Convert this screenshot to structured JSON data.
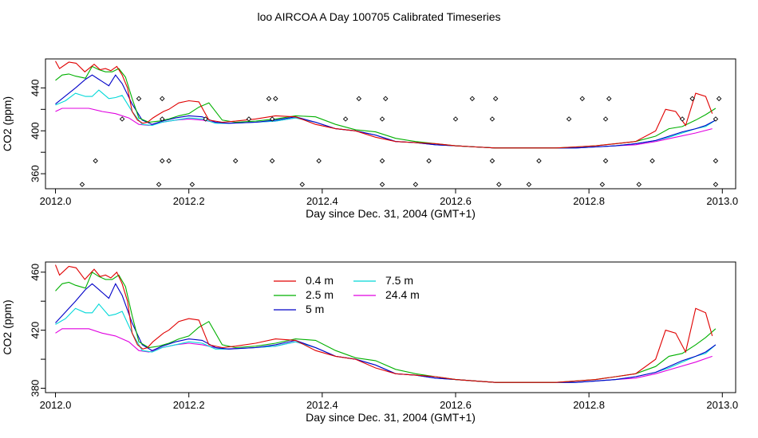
{
  "title": "loo AIRCOA A  Day 100705  Calibrated Timeseries",
  "colors": {
    "0.4 m": "#e00000",
    "2.5 m": "#00b000",
    "5 m": "#0000c8",
    "7.5 m": "#00d8d8",
    "24.4 m": "#e000e0",
    "markers": "#000000"
  },
  "chart_data": [
    {
      "type": "line",
      "xlabel": "Day since Dec. 31, 2004 (GMT+1)",
      "ylabel": "CO2 (ppm)",
      "xlim": [
        2011.985,
        2013.02
      ],
      "ylim": [
        346,
        467
      ],
      "xticks": [
        2012.0,
        2012.2,
        2012.4,
        2012.6,
        2012.8,
        2013.0
      ],
      "xtick_labels": [
        "2012.0",
        "2012.2",
        "2012.4",
        "2012.6",
        "2012.8",
        "2013.0"
      ],
      "yticks": [
        360,
        380,
        400,
        420,
        440
      ],
      "ytick_labels": [
        "360",
        "",
        "400",
        "",
        "440"
      ],
      "grid": false,
      "series": [
        {
          "name": "0.4 m",
          "x": [
            2012.0,
            2012.006,
            2012.02,
            2012.031,
            2012.044,
            2012.058,
            2012.067,
            2012.075,
            2012.083,
            2012.092,
            2012.1,
            2012.108,
            2012.115,
            2012.123,
            2012.131,
            2012.138,
            2012.146,
            2012.154,
            2012.162,
            2012.17,
            2012.185,
            2012.2,
            2012.215,
            2012.23,
            2012.25,
            2012.27,
            2012.3,
            2012.33,
            2012.36,
            2012.39,
            2012.42,
            2012.45,
            2012.48,
            2012.51,
            2012.54,
            2012.57,
            2012.6,
            2012.63,
            2012.66,
            2012.69,
            2012.72,
            2012.75,
            2012.78,
            2012.81,
            2012.84,
            2012.87,
            2012.9,
            2012.915,
            2012.93,
            2012.945,
            2012.96,
            2012.975,
            2012.985
          ],
          "y": [
            465,
            458,
            464,
            463,
            455,
            462,
            457,
            458,
            456,
            460,
            452,
            440,
            418,
            410,
            407,
            408,
            412,
            415,
            418,
            420,
            426,
            428,
            427,
            410,
            408,
            409,
            411,
            414,
            413,
            406,
            402,
            400,
            394,
            390,
            389,
            388,
            386,
            385,
            384,
            384,
            384,
            384,
            385,
            386,
            388,
            390,
            400,
            420,
            418,
            405,
            435,
            432,
            416
          ]
        },
        {
          "name": "2.5 m",
          "x": [
            2012.0,
            2012.01,
            2012.02,
            2012.03,
            2012.045,
            2012.055,
            2012.065,
            2012.075,
            2012.085,
            2012.095,
            2012.105,
            2012.115,
            2012.125,
            2012.14,
            2012.155,
            2012.17,
            2012.185,
            2012.2,
            2012.215,
            2012.23,
            2012.25,
            2012.27,
            2012.3,
            2012.33,
            2012.36,
            2012.39,
            2012.42,
            2012.45,
            2012.48,
            2012.51,
            2012.54,
            2012.57,
            2012.6,
            2012.63,
            2012.66,
            2012.69,
            2012.72,
            2012.75,
            2012.78,
            2012.81,
            2012.84,
            2012.87,
            2012.9,
            2012.92,
            2012.94,
            2012.96,
            2012.975,
            2012.99
          ],
          "y": [
            447,
            452,
            453,
            451,
            449,
            460,
            457,
            455,
            455,
            458,
            450,
            430,
            412,
            408,
            409,
            411,
            414,
            416,
            422,
            426,
            410,
            408,
            409,
            411,
            414,
            413,
            406,
            401,
            399,
            393,
            390,
            388,
            386,
            385,
            384,
            384,
            384,
            384,
            385,
            386,
            388,
            390,
            395,
            402,
            404,
            410,
            415,
            421
          ]
        },
        {
          "name": "5 m",
          "x": [
            2012.0,
            2012.01,
            2012.02,
            2012.03,
            2012.045,
            2012.055,
            2012.065,
            2012.08,
            2012.09,
            2012.1,
            2012.115,
            2012.13,
            2012.145,
            2012.16,
            2012.18,
            2012.2,
            2012.22,
            2012.24,
            2012.26,
            2012.3,
            2012.33,
            2012.36,
            2012.39,
            2012.42,
            2012.45,
            2012.48,
            2012.51,
            2012.54,
            2012.57,
            2012.6,
            2012.63,
            2012.66,
            2012.69,
            2012.72,
            2012.75,
            2012.78,
            2012.81,
            2012.84,
            2012.87,
            2012.9,
            2012.92,
            2012.94,
            2012.96,
            2012.975,
            2012.99
          ],
          "y": [
            425,
            430,
            435,
            440,
            448,
            452,
            448,
            442,
            452,
            444,
            425,
            410,
            406,
            409,
            412,
            414,
            413,
            408,
            407,
            408,
            410,
            413,
            408,
            402,
            400,
            396,
            390,
            389,
            387,
            386,
            385,
            384,
            384,
            384,
            384,
            384,
            385,
            386,
            388,
            391,
            395,
            399,
            402,
            405,
            410
          ]
        },
        {
          "name": "7.5 m",
          "x": [
            2012.0,
            2012.015,
            2012.03,
            2012.045,
            2012.055,
            2012.065,
            2012.08,
            2012.09,
            2012.1,
            2012.115,
            2012.13,
            2012.145,
            2012.16,
            2012.18,
            2012.2,
            2012.22,
            2012.24,
            2012.26,
            2012.3,
            2012.33,
            2012.36,
            2012.39,
            2012.42,
            2012.45,
            2012.48,
            2012.51,
            2012.54,
            2012.57,
            2012.6,
            2012.63,
            2012.66,
            2012.69,
            2012.72,
            2012.75,
            2012.78,
            2012.81,
            2012.84,
            2012.87,
            2012.9,
            2012.92,
            2012.94,
            2012.96,
            2012.975,
            2012.99
          ],
          "y": [
            424,
            428,
            435,
            432,
            432,
            438,
            430,
            431,
            433,
            418,
            406,
            405,
            408,
            410,
            412,
            411,
            407,
            407,
            408,
            409,
            412,
            408,
            402,
            400,
            396,
            390,
            389,
            387,
            386,
            385,
            384,
            384,
            384,
            384,
            384,
            385,
            386,
            388,
            391,
            394,
            398,
            402,
            404,
            410
          ]
        },
        {
          "name": "24.4 m",
          "x": [
            2012.0,
            2012.01,
            2012.03,
            2012.05,
            2012.07,
            2012.09,
            2012.11,
            2012.125,
            2012.14,
            2012.16,
            2012.18,
            2012.2,
            2012.22,
            2012.25,
            2012.3,
            2012.33,
            2012.36,
            2012.39,
            2012.42,
            2012.45,
            2012.48,
            2012.51,
            2012.54,
            2012.57,
            2012.6,
            2012.63,
            2012.66,
            2012.69,
            2012.72,
            2012.75,
            2012.78,
            2012.81,
            2012.84,
            2012.87,
            2012.9,
            2012.93,
            2012.96,
            2012.985
          ],
          "y": [
            418,
            421,
            421,
            421,
            418,
            416,
            412,
            406,
            405,
            408,
            410,
            411,
            410,
            407,
            408,
            409,
            412,
            408,
            402,
            400,
            396,
            390,
            389,
            387,
            386,
            385,
            384,
            384,
            384,
            384,
            384,
            385,
            386,
            387,
            390,
            394,
            398,
            402
          ]
        }
      ],
      "markers": {
        "x": [
          2012.04,
          2012.06,
          2012.1,
          2012.125,
          2012.155,
          2012.16,
          2012.16,
          2012.16,
          2012.17,
          2012.205,
          2012.225,
          2012.27,
          2012.29,
          2012.32,
          2012.325,
          2012.325,
          2012.33,
          2012.37,
          2012.395,
          2012.435,
          2012.455,
          2012.49,
          2012.49,
          2012.49,
          2012.495,
          2012.54,
          2012.56,
          2012.6,
          2012.625,
          2012.655,
          2012.655,
          2012.66,
          2012.665,
          2012.71,
          2012.725,
          2012.77,
          2012.79,
          2012.82,
          2012.825,
          2012.825,
          2012.83,
          2012.875,
          2012.895,
          2012.94,
          2012.955,
          2012.99,
          2012.99,
          2012.99,
          2012.995
        ],
        "y": [
          350,
          372,
          411,
          430,
          350,
          372,
          411,
          430,
          372,
          350,
          411,
          372,
          411,
          430,
          372,
          411,
          430,
          350,
          372,
          411,
          430,
          350,
          372,
          411,
          430,
          350,
          372,
          411,
          430,
          372,
          411,
          430,
          350,
          350,
          372,
          411,
          430,
          350,
          372,
          411,
          430,
          350,
          372,
          411,
          430,
          350,
          372,
          411,
          430
        ]
      }
    },
    {
      "type": "line",
      "xlabel": "Day since Dec. 31, 2004 (GMT+1)",
      "ylabel": "CO2 (ppm)",
      "xlim": [
        2011.985,
        2013.02
      ],
      "ylim": [
        377,
        467
      ],
      "xticks": [
        2012.0,
        2012.2,
        2012.4,
        2012.6,
        2012.8,
        2013.0
      ],
      "xtick_labels": [
        "2012.0",
        "2012.2",
        "2012.4",
        "2012.6",
        "2012.8",
        "2013.0"
      ],
      "yticks": [
        380,
        400,
        420,
        440,
        460
      ],
      "ytick_labels": [
        "380",
        "",
        "420",
        "",
        "460"
      ],
      "grid": false,
      "legend": {
        "placement": "top-center",
        "entries": [
          "0.4 m",
          "2.5 m",
          "5 m",
          "7.5 m",
          "24.4 m"
        ]
      },
      "series_ref": "same as panel 1"
    }
  ]
}
